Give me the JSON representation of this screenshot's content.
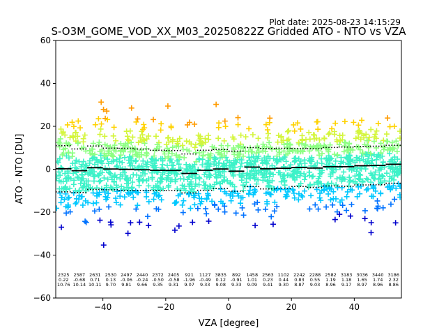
{
  "plot_date": "Plot date: 2025-08-23 14:15:29",
  "chart_data": {
    "type": "scatter",
    "title": "S-O3M_GOME_VOD_XX_M03_20250822Z Gridded ATO - NTO vs VZA",
    "xlabel": "VZA [degree]",
    "ylabel": "ATO - NTO [DU]",
    "xlim": [
      -55,
      55
    ],
    "ylim": [
      -60,
      60
    ],
    "xticks": [
      -40,
      -20,
      0,
      20,
      40
    ],
    "yticks": [
      -60,
      -40,
      -20,
      0,
      20,
      40,
      60
    ],
    "grid": false,
    "marker": "+",
    "colormap": [
      "#0000cd",
      "#0072ff",
      "#00c8ff",
      "#3cf2c8",
      "#8cff82",
      "#d4f53c",
      "#ffd200",
      "#ff9b00"
    ],
    "bins": [
      {
        "x": -52.5,
        "count": "2325",
        "mean": "0.22",
        "std": "10.76"
      },
      {
        "x": -47.5,
        "count": "2587",
        "mean": "-0.68",
        "std": "10.14"
      },
      {
        "x": -42.5,
        "count": "2631",
        "mean": "0.71",
        "std": "10.11"
      },
      {
        "x": -37.5,
        "count": "2530",
        "mean": "0.13",
        "std": "9.70"
      },
      {
        "x": -32.5,
        "count": "2497",
        "mean": "-0.06",
        "std": "9.81"
      },
      {
        "x": -27.5,
        "count": "2440",
        "mean": "-0.24",
        "std": "9.66"
      },
      {
        "x": -22.5,
        "count": "2372",
        "mean": "-0.50",
        "std": "9.35"
      },
      {
        "x": -17.5,
        "count": "2405",
        "mean": "-0.58",
        "std": "9.31"
      },
      {
        "x": -12.5,
        "count": "921",
        "mean": "-1.96",
        "std": "9.07"
      },
      {
        "x": -7.5,
        "count": "1127",
        "mean": "-0.49",
        "std": "9.33"
      },
      {
        "x": -2.5,
        "count": "3835",
        "mean": "0.12",
        "std": "9.08"
      },
      {
        "x": 2.5,
        "count": "892",
        "mean": "-0.91",
        "std": "9.33"
      },
      {
        "x": 7.5,
        "count": "1458",
        "mean": "1.01",
        "std": "9.09"
      },
      {
        "x": 12.5,
        "count": "2563",
        "mean": "0.23",
        "std": "9.41"
      },
      {
        "x": 17.5,
        "count": "1102",
        "mean": "0.44",
        "std": "9.30"
      },
      {
        "x": 22.5,
        "count": "2242",
        "mean": "0.83",
        "std": "8.87"
      },
      {
        "x": 27.5,
        "count": "2288",
        "mean": "0.55",
        "std": "9.03"
      },
      {
        "x": 32.5,
        "count": "2582",
        "mean": "1.19",
        "std": "8.96"
      },
      {
        "x": 37.5,
        "count": "3183",
        "mean": "1.18",
        "std": "9.17"
      },
      {
        "x": 42.5,
        "count": "3036",
        "mean": "1.65",
        "std": "8.97"
      },
      {
        "x": 47.5,
        "count": "3440",
        "mean": "1.74",
        "std": "8.96"
      },
      {
        "x": 52.5,
        "count": "3186",
        "mean": "2.32",
        "std": "8.86"
      }
    ]
  }
}
